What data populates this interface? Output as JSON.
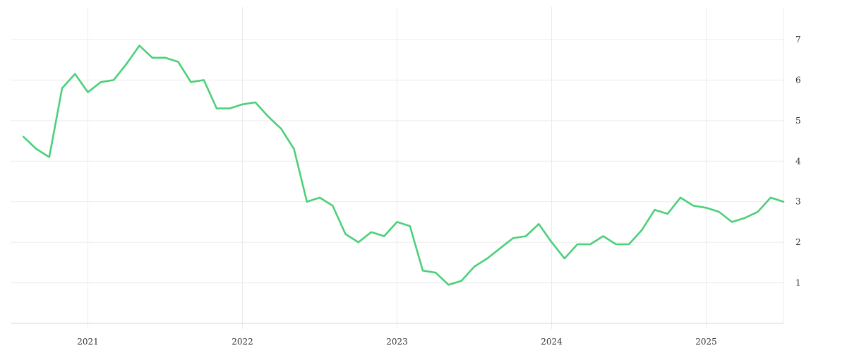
{
  "chart_data": {
    "type": "line",
    "title": "",
    "xlabel": "",
    "ylabel": "",
    "x_ticks": [
      "2021",
      "2022",
      "2023",
      "2024",
      "2025"
    ],
    "y_ticks": [
      "1",
      "2",
      "3",
      "4",
      "5",
      "6",
      "7"
    ],
    "xlim": [
      "2020-07",
      "2025-07"
    ],
    "ylim": [
      0,
      7.8
    ],
    "grid": true,
    "y_axis_position": "right",
    "line_color": "#4cd07a",
    "grid_color": "#ebebeb",
    "axis_color": "#d8d8d8",
    "series": [
      {
        "x": [
          "2020-08",
          "2020-09",
          "2020-10",
          "2020-11",
          "2020-12",
          "2021-01",
          "2021-02",
          "2021-03",
          "2021-04",
          "2021-05",
          "2021-06",
          "2021-07",
          "2021-08",
          "2021-09",
          "2021-10",
          "2021-11",
          "2021-12",
          "2022-01",
          "2022-02",
          "2022-03",
          "2022-04",
          "2022-05",
          "2022-06",
          "2022-07",
          "2022-08",
          "2022-09",
          "2022-10",
          "2022-11",
          "2022-12",
          "2023-01",
          "2023-02",
          "2023-03",
          "2023-04",
          "2023-05",
          "2023-06",
          "2023-07",
          "2023-08",
          "2023-09",
          "2023-10",
          "2023-11",
          "2023-12",
          "2024-01",
          "2024-02",
          "2024-03",
          "2024-04",
          "2024-05",
          "2024-06",
          "2024-07",
          "2024-08",
          "2024-09",
          "2024-10",
          "2024-11",
          "2024-12",
          "2025-01",
          "2025-02",
          "2025-03",
          "2025-04",
          "2025-05",
          "2025-06",
          "2025-07"
        ],
        "values": [
          4.6,
          4.3,
          4.1,
          5.8,
          6.15,
          5.7,
          5.95,
          6.0,
          6.4,
          6.85,
          6.55,
          6.55,
          6.45,
          5.95,
          6.0,
          5.3,
          5.3,
          5.4,
          5.45,
          5.1,
          4.8,
          4.3,
          3.0,
          3.1,
          2.9,
          2.2,
          2.0,
          2.25,
          2.15,
          2.5,
          2.4,
          1.3,
          1.25,
          0.95,
          1.05,
          1.4,
          1.6,
          1.85,
          2.1,
          2.15,
          2.45,
          2.0,
          1.6,
          1.95,
          1.95,
          2.15,
          1.95,
          1.95,
          2.3,
          2.8,
          2.7,
          3.1,
          2.9,
          2.85,
          2.75,
          2.5,
          2.6,
          2.75,
          3.1,
          3.0
        ]
      }
    ]
  }
}
